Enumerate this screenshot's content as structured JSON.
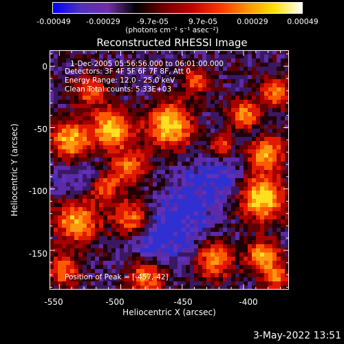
{
  "colorbar": {
    "tick_labels": [
      "-0.00049",
      "-0.00029",
      "-9.7e-05",
      "9.7e-05",
      "0.00029",
      "0.00049"
    ],
    "units_label": "(photons cm⁻² s⁻¹ asec⁻²)",
    "colors": [
      "#0000ff",
      "#5030c0",
      "#7030a0",
      "#000000",
      "#700000",
      "#c00000",
      "#ff3000",
      "#ff9000",
      "#ffe000",
      "#ffffff"
    ]
  },
  "title": "Reconstructed RHESSI Image",
  "annotations": {
    "time_range": "1-Dec-2005 05:56:56.000 to 06:01:00.000",
    "detectors": "Detectors: 3F 4F 5F 6F 7F 8F, Att 0",
    "energy_range": "Energy Range: 12.0 - 25.0 keV",
    "method": "Clean    Total counts: 5.33E+03",
    "peak_position": "Position of Peak = [-457,-42]"
  },
  "axes": {
    "xlabel": "Heliocentric X (arcsec)",
    "ylabel": "Heliocentric Y (arcsec)",
    "xticks": [
      "-550",
      "-500",
      "-450",
      "-400"
    ],
    "yticks": [
      "0",
      "-50",
      "-100",
      "-150"
    ],
    "x_tick_values": [
      -550,
      -500,
      -450,
      -400
    ],
    "y_tick_values": [
      0,
      -50,
      -100,
      -150
    ],
    "xlim": [
      -558,
      -363
    ],
    "ylim": [
      -182,
      13
    ]
  },
  "datestamp": "3-May-2022 13:51"
}
